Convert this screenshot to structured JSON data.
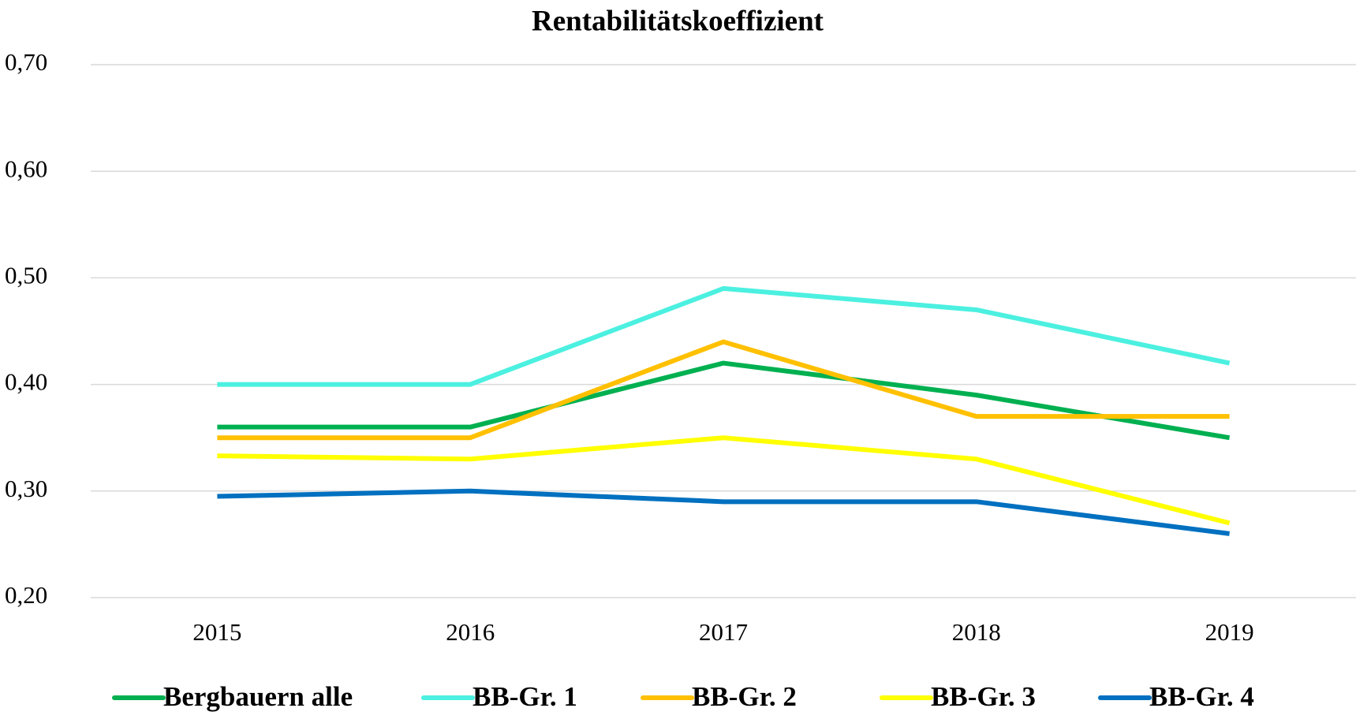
{
  "chart_data": {
    "type": "line",
    "title": "Rentabilitätskoeffizient",
    "categories": [
      "2015",
      "2016",
      "2017",
      "2018",
      "2019"
    ],
    "series": [
      {
        "name": "Bergbauern alle",
        "color": "#00b050",
        "values": [
          0.36,
          0.36,
          0.42,
          0.39,
          0.35
        ]
      },
      {
        "name": "BB-Gr. 1",
        "color": "#4cf0e0",
        "values": [
          0.4,
          0.4,
          0.49,
          0.47,
          0.42
        ]
      },
      {
        "name": "BB-Gr. 2",
        "color": "#ffc000",
        "values": [
          0.35,
          0.35,
          0.44,
          0.37,
          0.37
        ]
      },
      {
        "name": "BB-Gr. 3",
        "color": "#ffff00",
        "values": [
          0.333,
          0.33,
          0.35,
          0.33,
          0.27
        ]
      },
      {
        "name": "BB-Gr. 4",
        "color": "#0070c0",
        "values": [
          0.295,
          0.3,
          0.29,
          0.29,
          0.26
        ]
      }
    ],
    "ylim": [
      0.2,
      0.7
    ],
    "yticks": [
      {
        "value": 0.2,
        "label": "0,20"
      },
      {
        "value": 0.3,
        "label": "0,30"
      },
      {
        "value": 0.4,
        "label": "0,40"
      },
      {
        "value": 0.5,
        "label": "0,50"
      },
      {
        "value": 0.6,
        "label": "0,60"
      },
      {
        "value": 0.7,
        "label": "0,70"
      }
    ],
    "grid": true,
    "legend": "bottom"
  }
}
